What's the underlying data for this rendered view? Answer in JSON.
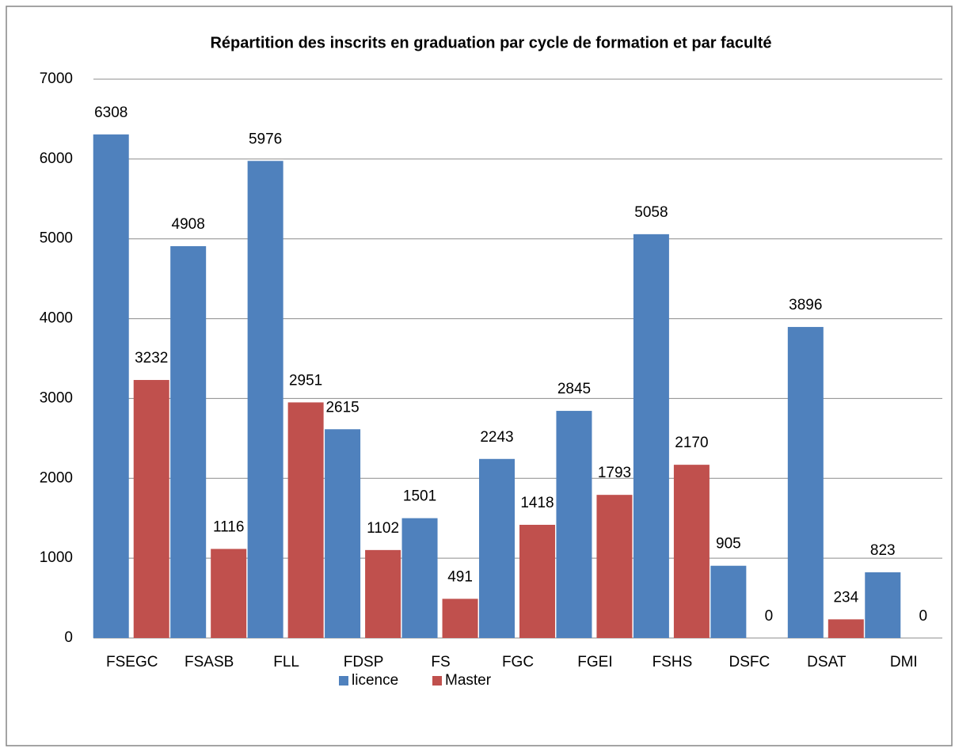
{
  "chart_data": {
    "type": "bar",
    "title": "Répartition des inscrits en graduation par cycle de formation et par faculté",
    "categories": [
      "FSEGC",
      "FSASB",
      "FLL",
      "FDSP",
      "FS",
      "FGC",
      "FGEI",
      "FSHS",
      "DSFC",
      "DSAT",
      "DMI"
    ],
    "series": [
      {
        "name": "licence",
        "color": "#4f81bd",
        "values": [
          6308,
          4908,
          5976,
          2615,
          1501,
          2243,
          2845,
          5058,
          905,
          3896,
          823
        ]
      },
      {
        "name": "Master",
        "color": "#c0504d",
        "values": [
          3232,
          1116,
          2951,
          1102,
          491,
          1418,
          1793,
          2170,
          0,
          234,
          0
        ]
      }
    ],
    "ylim": [
      0,
      7000
    ],
    "yticks": [
      0,
      1000,
      2000,
      3000,
      4000,
      5000,
      6000,
      7000
    ],
    "grid": true,
    "legend": "bottom"
  }
}
